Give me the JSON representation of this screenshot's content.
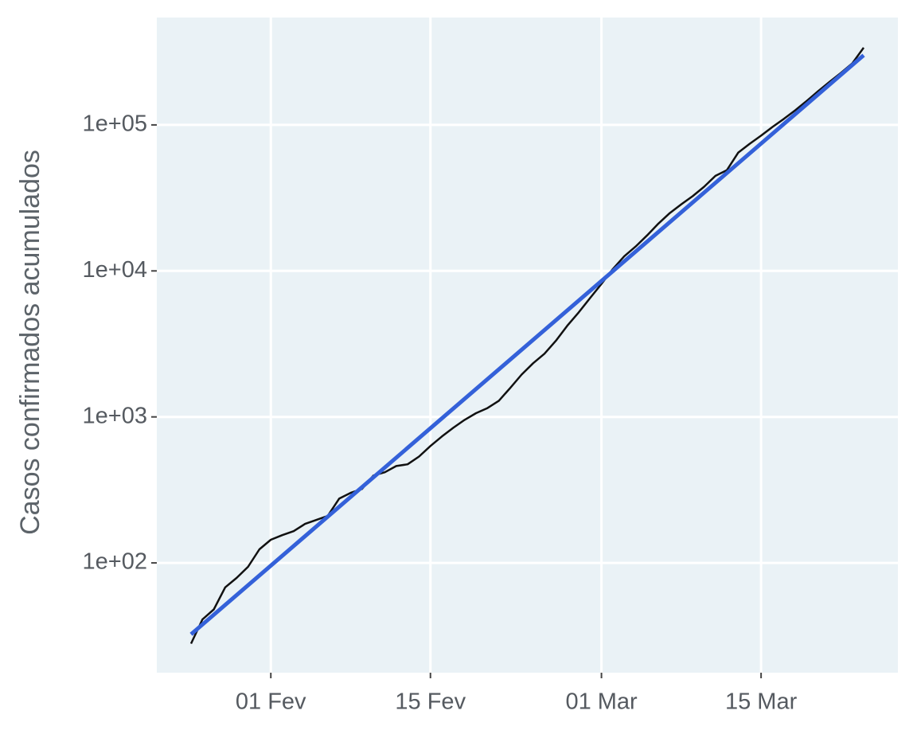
{
  "chart_data": {
    "type": "line",
    "y_label": "Casos confirmados acumulados",
    "log_y": true,
    "grid": true,
    "background": "#eaf2f6",
    "xlim": [
      "01-22",
      "03-27"
    ],
    "xticks": [
      {
        "value": "02-01",
        "label": "01 Fev"
      },
      {
        "value": "02-15",
        "label": "15 Fev"
      },
      {
        "value": "03-01",
        "label": "01 Mar"
      },
      {
        "value": "03-15",
        "label": "15 Mar"
      }
    ],
    "ylim": [
      17.7,
      544000
    ],
    "yticks": [
      {
        "value": 100,
        "label": "1e+02"
      },
      {
        "value": 1000,
        "label": "1e+03"
      },
      {
        "value": 10000,
        "label": "1e+04"
      },
      {
        "value": 100000,
        "label": "1e+05"
      }
    ],
    "series": [
      {
        "color": "#111111",
        "width": 2.5,
        "x": [
          "01-25",
          "01-26",
          "01-27",
          "01-28",
          "01-29",
          "01-30",
          "01-31",
          "02-01",
          "02-02",
          "02-03",
          "02-04",
          "02-05",
          "02-06",
          "02-07",
          "02-08",
          "02-09",
          "02-10",
          "02-11",
          "02-12",
          "02-13",
          "02-14",
          "02-15",
          "02-16",
          "02-17",
          "02-18",
          "02-19",
          "02-20",
          "02-21",
          "02-22",
          "02-23",
          "02-24",
          "02-25",
          "02-26",
          "02-27",
          "02-28",
          "02-29",
          "03-01",
          "03-02",
          "03-03",
          "03-04",
          "03-05",
          "03-06",
          "03-07",
          "03-08",
          "03-09",
          "03-10",
          "03-11",
          "03-12",
          "03-13",
          "03-14",
          "03-15",
          "03-16",
          "03-17",
          "03-18",
          "03-19",
          "03-20",
          "03-21",
          "03-22",
          "03-23",
          "03-24"
        ],
        "values": [
          28,
          41,
          48,
          68,
          79,
          94,
          124,
          144,
          155,
          165,
          185,
          197,
          210,
          276,
          302,
          321,
          397,
          418,
          461,
          474,
          535,
          632,
          734,
          842,
          954,
          1060,
          1150,
          1290,
          1580,
          1950,
          2330,
          2710,
          3320,
          4210,
          5200,
          6520,
          8150,
          10300,
          12600,
          14700,
          17500,
          21100,
          24900,
          28600,
          32500,
          37700,
          44800,
          49000,
          64700,
          74300,
          84400,
          96800,
          110000,
          126000,
          146000,
          170000,
          197000,
          227000,
          264000,
          338000
        ]
      },
      {
        "color": "#3461d9",
        "width": 5,
        "x": [
          "01-25",
          "03-24"
        ],
        "values": [
          32.4,
          300000
        ]
      }
    ]
  }
}
